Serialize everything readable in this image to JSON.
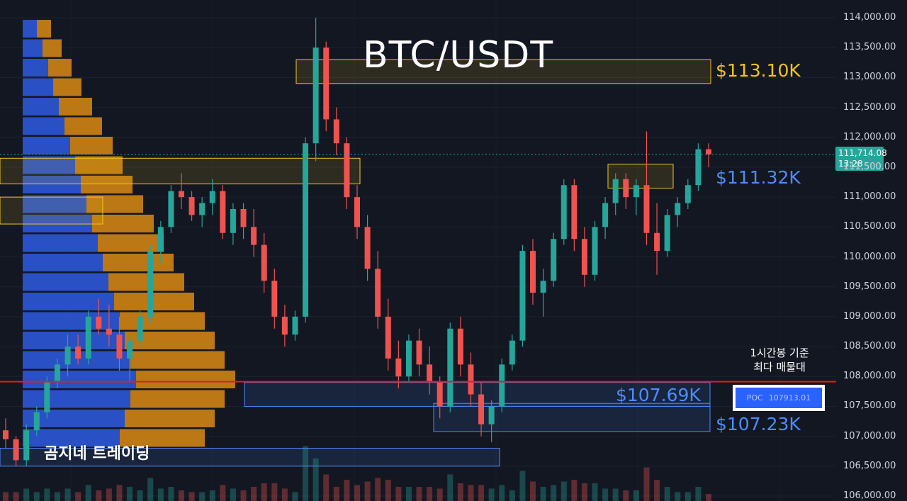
{
  "chart_data": {
    "type": "candlestick",
    "title": "BTC/USDT",
    "y_ticks": [
      "114,000.00",
      "113,500.00",
      "113,000.00",
      "112,500.00",
      "112,000.00",
      "111,500.00",
      "111,000.00",
      "110,500.00",
      "110,000.00",
      "109,500.00",
      "109,000.00",
      "108,500.00",
      "108,000.00",
      "107,500.00",
      "107,000.00",
      "106,500.00",
      "106,000.00"
    ],
    "ylim": [
      106000,
      114000
    ],
    "current_price": "111,714.08",
    "countdown": "13:28",
    "levels": [
      {
        "label": "$113.10K",
        "color": "#f5c518"
      },
      {
        "label": "$111.32K",
        "color": "#4d8bff"
      },
      {
        "label": "$107.69K",
        "color": "#4d8bff"
      },
      {
        "label": "$107.23K",
        "color": "#4d8bff"
      }
    ],
    "poc": {
      "label": "POC",
      "value": "107913.01",
      "note_line1": "1시간봉 기준",
      "note_line2": "최다 매물대"
    },
    "watermark": "곰지네 트레이딩",
    "candles": [
      [
        107100,
        107300,
        106800,
        106950
      ],
      [
        106950,
        107000,
        106500,
        106600
      ],
      [
        106600,
        107200,
        106500,
        107100
      ],
      [
        107100,
        107500,
        107000,
        107400
      ],
      [
        107400,
        108000,
        107300,
        107900
      ],
      [
        107900,
        108300,
        107800,
        108200
      ],
      [
        108200,
        108700,
        108000,
        108500
      ],
      [
        108500,
        108700,
        108200,
        108300
      ],
      [
        108300,
        109100,
        108200,
        109000
      ],
      [
        109000,
        109300,
        108700,
        108800
      ],
      [
        108800,
        109200,
        108500,
        108700
      ],
      [
        108700,
        109000,
        108100,
        108300
      ],
      [
        108300,
        108700,
        107900,
        108600
      ],
      [
        108600,
        109100,
        108500,
        109000
      ],
      [
        109000,
        110200,
        108900,
        110100
      ],
      [
        110100,
        110600,
        109900,
        110500
      ],
      [
        110500,
        111200,
        110400,
        111100
      ],
      [
        111100,
        111400,
        110800,
        111000
      ],
      [
        111000,
        111100,
        110600,
        110700
      ],
      [
        110700,
        111000,
        110500,
        110900
      ],
      [
        110900,
        111300,
        110700,
        111100
      ],
      [
        111100,
        111200,
        110300,
        110400
      ],
      [
        110400,
        110900,
        110200,
        110800
      ],
      [
        110800,
        110900,
        110300,
        110500
      ],
      [
        110500,
        110800,
        110000,
        110200
      ],
      [
        110200,
        110400,
        109400,
        109600
      ],
      [
        109600,
        109800,
        108800,
        109000
      ],
      [
        109000,
        109200,
        108500,
        108700
      ],
      [
        108700,
        109100,
        108600,
        109000
      ],
      [
        109000,
        112000,
        108900,
        111900
      ],
      [
        111900,
        114000,
        111600,
        113500
      ],
      [
        113500,
        113600,
        112100,
        112300
      ],
      [
        112300,
        112500,
        111700,
        111900
      ],
      [
        111900,
        112000,
        110800,
        111000
      ],
      [
        111000,
        111200,
        110300,
        110500
      ],
      [
        110500,
        110700,
        109600,
        109800
      ],
      [
        109800,
        110100,
        108800,
        109000
      ],
      [
        109000,
        109300,
        108100,
        108300
      ],
      [
        108300,
        108600,
        107800,
        108000
      ],
      [
        108000,
        108700,
        107900,
        108600
      ],
      [
        108600,
        108800,
        108000,
        108200
      ],
      [
        108200,
        108500,
        107700,
        107900
      ],
      [
        107900,
        108000,
        107300,
        107500
      ],
      [
        107500,
        108900,
        107400,
        108800
      ],
      [
        108800,
        109000,
        108000,
        108200
      ],
      [
        108200,
        108400,
        107500,
        107700
      ],
      [
        107700,
        107900,
        107000,
        107200
      ],
      [
        107200,
        107600,
        106900,
        107500
      ],
      [
        107500,
        108300,
        107400,
        108200
      ],
      [
        108200,
        108700,
        108100,
        108600
      ],
      [
        108600,
        110200,
        108500,
        110100
      ],
      [
        110100,
        110300,
        109200,
        109400
      ],
      [
        109400,
        109800,
        109000,
        109600
      ],
      [
        109600,
        110400,
        109500,
        110300
      ],
      [
        110300,
        111300,
        110200,
        111200
      ],
      [
        111200,
        111300,
        110100,
        110300
      ],
      [
        110300,
        110500,
        109500,
        109700
      ],
      [
        109700,
        110600,
        109600,
        110500
      ],
      [
        110500,
        111000,
        110300,
        110900
      ],
      [
        110900,
        111400,
        110700,
        111300
      ],
      [
        111300,
        111400,
        110800,
        111000
      ],
      [
        111000,
        111300,
        110700,
        111200
      ],
      [
        111200,
        112100,
        110200,
        110400
      ],
      [
        110400,
        110900,
        109700,
        110100
      ],
      [
        110100,
        110800,
        110000,
        110700
      ],
      [
        110700,
        111000,
        110500,
        110900
      ],
      [
        110900,
        111300,
        110800,
        111200
      ],
      [
        111200,
        111900,
        111100,
        111800
      ],
      [
        111800,
        111900,
        111500,
        111714
      ]
    ]
  }
}
